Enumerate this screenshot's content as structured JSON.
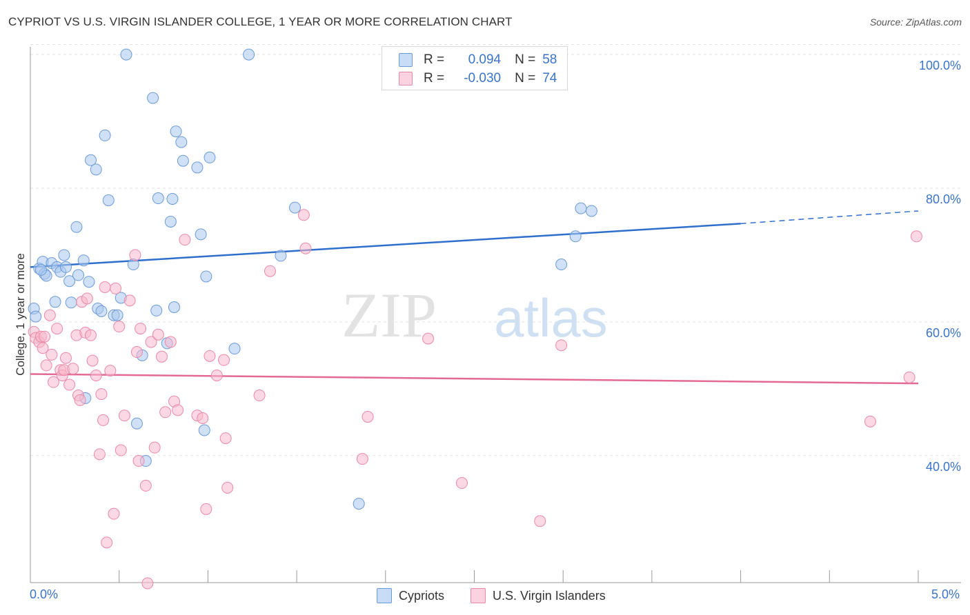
{
  "title": "CYPRIOT VS U.S. VIRGIN ISLANDER COLLEGE, 1 YEAR OR MORE CORRELATION CHART",
  "source": "Source: ZipAtlas.com",
  "watermark": {
    "zip": "ZIP",
    "atlas": "atlas"
  },
  "legend": {
    "rows": [
      {
        "r_label": "R =",
        "r_value": "0.094",
        "n_label": "N =",
        "n_value": "58",
        "color": "#a9c9f0"
      },
      {
        "r_label": "R =",
        "r_value": "-0.030",
        "n_label": "N =",
        "n_value": "74",
        "color": "#f7b8cc"
      }
    ]
  },
  "bottom_legend": [
    "Cypriots",
    "U.S. Virgin Islanders"
  ],
  "x_tick_left": "0.0%",
  "x_tick_right": "5.0%",
  "chart_data": {
    "type": "scatter",
    "title": "CYPRIOT VS U.S. VIRGIN ISLANDER COLLEGE, 1 YEAR OR MORE CORRELATION CHART",
    "xlabel": "",
    "ylabel": "College, 1 year or more",
    "xlim": [
      0,
      5
    ],
    "ylim": [
      21,
      103
    ],
    "x_unit": "%",
    "y_ticks": [
      {
        "value": 40,
        "label": "40.0%"
      },
      {
        "value": 60,
        "label": "60.0%"
      },
      {
        "value": 80,
        "label": "80.0%"
      },
      {
        "value": 100,
        "label": "100.0%"
      }
    ],
    "grid": true,
    "legend_position": "top-center",
    "series": [
      {
        "name": "Cypriots",
        "color": "#a9c9f0",
        "stroke": "#6b9ad8",
        "trend": {
          "x0": 0,
          "y0": 68.2,
          "x1": 4.0,
          "y1": 74.7,
          "dash_to_x": 5.0,
          "dash_to_y": 76.6,
          "color": "#2f6fcc"
        },
        "points": [
          [
            0.02,
            62.0
          ],
          [
            0.03,
            60.8
          ],
          [
            0.05,
            68.0
          ],
          [
            0.07,
            69.0
          ],
          [
            0.08,
            67.2
          ],
          [
            0.09,
            66.9
          ],
          [
            0.12,
            68.8
          ],
          [
            0.14,
            63.0
          ],
          [
            0.15,
            68.2
          ],
          [
            0.17,
            67.5
          ],
          [
            0.19,
            70.0
          ],
          [
            0.2,
            68.2
          ],
          [
            0.22,
            66.1
          ],
          [
            0.23,
            62.9
          ],
          [
            0.26,
            74.2
          ],
          [
            0.27,
            67.0
          ],
          [
            0.3,
            69.2
          ],
          [
            0.31,
            48.6
          ],
          [
            0.33,
            66.0
          ],
          [
            0.34,
            84.2
          ],
          [
            0.37,
            82.8
          ],
          [
            0.38,
            62.0
          ],
          [
            0.4,
            61.6
          ],
          [
            0.42,
            87.9
          ],
          [
            0.44,
            78.2
          ],
          [
            0.47,
            61.0
          ],
          [
            0.49,
            61.0
          ],
          [
            0.51,
            63.6
          ],
          [
            0.54,
            100.0
          ],
          [
            0.58,
            68.6
          ],
          [
            0.6,
            44.8
          ],
          [
            0.63,
            55.0
          ],
          [
            0.65,
            39.2
          ],
          [
            0.69,
            93.5
          ],
          [
            0.71,
            61.7
          ],
          [
            0.72,
            78.5
          ],
          [
            0.77,
            56.8
          ],
          [
            0.79,
            75.0
          ],
          [
            0.8,
            78.4
          ],
          [
            0.81,
            62.2
          ],
          [
            0.82,
            88.5
          ],
          [
            0.85,
            86.9
          ],
          [
            0.86,
            84.1
          ],
          [
            0.94,
            83.1
          ],
          [
            0.96,
            73.1
          ],
          [
            0.98,
            43.8
          ],
          [
            0.99,
            66.8
          ],
          [
            1.01,
            84.6
          ],
          [
            1.15,
            56.0
          ],
          [
            1.23,
            100.0
          ],
          [
            1.41,
            69.9
          ],
          [
            1.49,
            77.1
          ],
          [
            1.85,
            32.8
          ],
          [
            2.99,
            68.6
          ],
          [
            3.07,
            72.8
          ],
          [
            3.1,
            77.0
          ],
          [
            3.16,
            76.6
          ],
          [
            0.06,
            67.8
          ]
        ]
      },
      {
        "name": "U.S. Virgin Islanders",
        "color": "#f7b8cc",
        "stroke": "#e989a8",
        "trend": {
          "x0": 0,
          "y0": 52.2,
          "x1": 5.0,
          "y1": 50.8,
          "color": "#e36a94"
        },
        "points": [
          [
            0.02,
            58.5
          ],
          [
            0.03,
            57.6
          ],
          [
            0.05,
            57.0
          ],
          [
            0.06,
            57.8
          ],
          [
            0.07,
            56.1
          ],
          [
            0.08,
            57.8
          ],
          [
            0.09,
            53.5
          ],
          [
            0.11,
            61.0
          ],
          [
            0.12,
            55.1
          ],
          [
            0.13,
            51.0
          ],
          [
            0.15,
            59.0
          ],
          [
            0.17,
            52.8
          ],
          [
            0.18,
            52.0
          ],
          [
            0.19,
            52.8
          ],
          [
            0.2,
            54.6
          ],
          [
            0.22,
            50.6
          ],
          [
            0.24,
            53.0
          ],
          [
            0.26,
            58.0
          ],
          [
            0.27,
            49.0
          ],
          [
            0.28,
            48.3
          ],
          [
            0.29,
            63.0
          ],
          [
            0.31,
            58.4
          ],
          [
            0.32,
            63.5
          ],
          [
            0.34,
            58.0
          ],
          [
            0.35,
            54.2
          ],
          [
            0.37,
            52.0
          ],
          [
            0.39,
            40.2
          ],
          [
            0.4,
            49.2
          ],
          [
            0.41,
            45.3
          ],
          [
            0.42,
            65.2
          ],
          [
            0.43,
            27.0
          ],
          [
            0.45,
            52.7
          ],
          [
            0.47,
            31.3
          ],
          [
            0.48,
            65.0
          ],
          [
            0.5,
            59.3
          ],
          [
            0.51,
            40.8
          ],
          [
            0.53,
            46.0
          ],
          [
            0.56,
            63.2
          ],
          [
            0.59,
            70.0
          ],
          [
            0.6,
            55.5
          ],
          [
            0.61,
            39.2
          ],
          [
            0.62,
            59.0
          ],
          [
            0.65,
            35.5
          ],
          [
            0.66,
            20.9
          ],
          [
            0.68,
            57.0
          ],
          [
            0.7,
            41.2
          ],
          [
            0.72,
            58.1
          ],
          [
            0.74,
            54.8
          ],
          [
            0.76,
            46.5
          ],
          [
            0.79,
            57.0
          ],
          [
            0.81,
            48.1
          ],
          [
            0.83,
            46.8
          ],
          [
            0.87,
            72.3
          ],
          [
            0.94,
            46.0
          ],
          [
            0.97,
            45.6
          ],
          [
            0.99,
            32.0
          ],
          [
            1.01,
            54.9
          ],
          [
            1.05,
            52.0
          ],
          [
            1.09,
            54.3
          ],
          [
            1.1,
            42.6
          ],
          [
            1.11,
            35.2
          ],
          [
            1.29,
            49.0
          ],
          [
            1.35,
            67.6
          ],
          [
            1.54,
            76.0
          ],
          [
            1.55,
            71.0
          ],
          [
            1.87,
            39.5
          ],
          [
            1.9,
            45.8
          ],
          [
            2.24,
            57.5
          ],
          [
            2.43,
            35.9
          ],
          [
            2.87,
            30.2
          ],
          [
            2.99,
            56.5
          ],
          [
            4.73,
            45.1
          ],
          [
            4.95,
            51.7
          ],
          [
            4.99,
            72.8
          ]
        ]
      }
    ]
  }
}
